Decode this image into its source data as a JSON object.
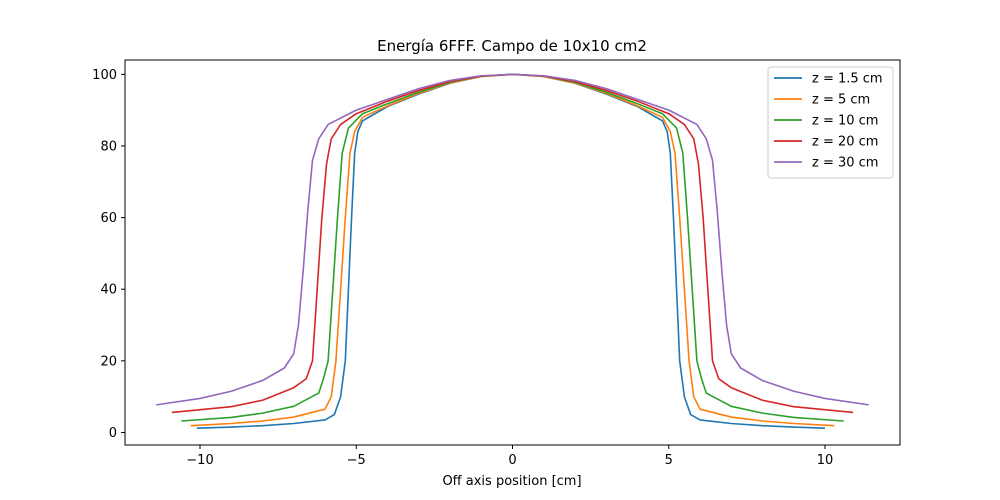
{
  "chart_data": {
    "type": "line",
    "title": "Energía 6FFF. Campo de 10x10 cm2",
    "xlabel": "Off axis position [cm]",
    "ylabel": "",
    "xlim": [
      -12.4,
      12.4
    ],
    "ylim": [
      -3.5,
      104
    ],
    "xticks": [
      -10,
      -5,
      0,
      5,
      10
    ],
    "xtick_labels": [
      "−10",
      "−5",
      "0",
      "5",
      "10"
    ],
    "yticks": [
      0,
      20,
      40,
      60,
      80,
      100
    ],
    "ytick_labels": [
      "0",
      "20",
      "40",
      "60",
      "80",
      "100"
    ],
    "grid": false,
    "legend_position": "top-right",
    "series": [
      {
        "name": "z = 1.5 cm",
        "color": "#1f77b4",
        "points": [
          [
            -10.1,
            1.2
          ],
          [
            -9,
            1.5
          ],
          [
            -8,
            1.9
          ],
          [
            -7,
            2.5
          ],
          [
            -6,
            3.5
          ],
          [
            -5.7,
            5
          ],
          [
            -5.5,
            10
          ],
          [
            -5.35,
            20
          ],
          [
            -5.25,
            40
          ],
          [
            -5.15,
            60
          ],
          [
            -5.05,
            78
          ],
          [
            -4.95,
            84
          ],
          [
            -4.8,
            87
          ],
          [
            -4,
            91
          ],
          [
            -3,
            94.5
          ],
          [
            -2,
            97.5
          ],
          [
            -1,
            99.4
          ],
          [
            0,
            100
          ],
          [
            1,
            99.4
          ],
          [
            2,
            97.5
          ],
          [
            3,
            94.5
          ],
          [
            4,
            91
          ],
          [
            4.8,
            87
          ],
          [
            4.95,
            84
          ],
          [
            5.05,
            78
          ],
          [
            5.15,
            60
          ],
          [
            5.25,
            40
          ],
          [
            5.35,
            20
          ],
          [
            5.5,
            10
          ],
          [
            5.7,
            5
          ],
          [
            6,
            3.5
          ],
          [
            7,
            2.5
          ],
          [
            8,
            1.9
          ],
          [
            9,
            1.5
          ],
          [
            10,
            1.2
          ]
        ]
      },
      {
        "name": "z = 5 cm",
        "color": "#ff7f0e",
        "points": [
          [
            -10.3,
            1.9
          ],
          [
            -9,
            2.5
          ],
          [
            -8,
            3.2
          ],
          [
            -7,
            4.3
          ],
          [
            -6,
            6.5
          ],
          [
            -5.8,
            10
          ],
          [
            -5.65,
            20
          ],
          [
            -5.5,
            40
          ],
          [
            -5.35,
            60
          ],
          [
            -5.2,
            78
          ],
          [
            -5.05,
            84
          ],
          [
            -4.8,
            88
          ],
          [
            -4,
            91.2
          ],
          [
            -3,
            94.7
          ],
          [
            -2,
            97.6
          ],
          [
            -1,
            99.4
          ],
          [
            0,
            100
          ],
          [
            1,
            99.4
          ],
          [
            2,
            97.6
          ],
          [
            3,
            94.7
          ],
          [
            4,
            91.2
          ],
          [
            4.8,
            88
          ],
          [
            5.05,
            84
          ],
          [
            5.2,
            78
          ],
          [
            5.35,
            60
          ],
          [
            5.5,
            40
          ],
          [
            5.65,
            20
          ],
          [
            5.8,
            10
          ],
          [
            6,
            6.5
          ],
          [
            7,
            4.3
          ],
          [
            8,
            3.2
          ],
          [
            9,
            2.5
          ],
          [
            10.3,
            1.9
          ]
        ]
      },
      {
        "name": "z = 10 cm",
        "color": "#2ca02c",
        "points": [
          [
            -10.6,
            3.2
          ],
          [
            -9,
            4.2
          ],
          [
            -8,
            5.4
          ],
          [
            -7,
            7.3
          ],
          [
            -6.2,
            11
          ],
          [
            -6.05,
            15
          ],
          [
            -5.9,
            20
          ],
          [
            -5.75,
            40
          ],
          [
            -5.6,
            60
          ],
          [
            -5.45,
            78
          ],
          [
            -5.25,
            85
          ],
          [
            -4.8,
            89
          ],
          [
            -4,
            91.8
          ],
          [
            -3,
            95
          ],
          [
            -2,
            97.8
          ],
          [
            -1,
            99.5
          ],
          [
            0,
            100
          ],
          [
            1,
            99.5
          ],
          [
            2,
            97.8
          ],
          [
            3,
            95
          ],
          [
            4,
            91.8
          ],
          [
            4.8,
            89
          ],
          [
            5.25,
            85
          ],
          [
            5.45,
            78
          ],
          [
            5.6,
            60
          ],
          [
            5.75,
            40
          ],
          [
            5.9,
            20
          ],
          [
            6.05,
            15
          ],
          [
            6.2,
            11
          ],
          [
            7,
            7.3
          ],
          [
            8,
            5.4
          ],
          [
            9,
            4.2
          ],
          [
            10.6,
            3.2
          ]
        ]
      },
      {
        "name": "z = 20 cm",
        "color": "#d62728",
        "points": [
          [
            -10.9,
            5.6
          ],
          [
            -9,
            7.2
          ],
          [
            -8,
            9
          ],
          [
            -7,
            12.5
          ],
          [
            -6.6,
            15
          ],
          [
            -6.4,
            20
          ],
          [
            -6.25,
            40
          ],
          [
            -6.1,
            60
          ],
          [
            -5.95,
            75
          ],
          [
            -5.8,
            82
          ],
          [
            -5.5,
            86
          ],
          [
            -5,
            89
          ],
          [
            -4,
            92.5
          ],
          [
            -3,
            95.5
          ],
          [
            -2,
            98
          ],
          [
            -1,
            99.5
          ],
          [
            0,
            100
          ],
          [
            1,
            99.5
          ],
          [
            2,
            98
          ],
          [
            3,
            95.5
          ],
          [
            4,
            92.5
          ],
          [
            5,
            89
          ],
          [
            5.5,
            86
          ],
          [
            5.8,
            82
          ],
          [
            5.95,
            75
          ],
          [
            6.1,
            60
          ],
          [
            6.25,
            40
          ],
          [
            6.4,
            20
          ],
          [
            6.6,
            15
          ],
          [
            7,
            12.5
          ],
          [
            8,
            9
          ],
          [
            9,
            7.2
          ],
          [
            10.9,
            5.6
          ]
        ]
      },
      {
        "name": "z = 30 cm",
        "color": "#9467bd",
        "points": [
          [
            -11.4,
            7.7
          ],
          [
            -10,
            9.5
          ],
          [
            -9,
            11.5
          ],
          [
            -8,
            14.5
          ],
          [
            -7.3,
            18
          ],
          [
            -7,
            22
          ],
          [
            -6.85,
            30
          ],
          [
            -6.7,
            45
          ],
          [
            -6.55,
            62
          ],
          [
            -6.4,
            76
          ],
          [
            -6.2,
            82
          ],
          [
            -5.9,
            86
          ],
          [
            -5,
            90
          ],
          [
            -4,
            93
          ],
          [
            -3,
            96
          ],
          [
            -2,
            98.3
          ],
          [
            -1,
            99.6
          ],
          [
            0,
            100
          ],
          [
            1,
            99.6
          ],
          [
            2,
            98.3
          ],
          [
            3,
            96
          ],
          [
            4,
            93
          ],
          [
            5,
            90
          ],
          [
            5.9,
            86
          ],
          [
            6.2,
            82
          ],
          [
            6.4,
            76
          ],
          [
            6.55,
            62
          ],
          [
            6.7,
            45
          ],
          [
            6.85,
            30
          ],
          [
            7,
            22
          ],
          [
            7.3,
            18
          ],
          [
            8,
            14.5
          ],
          [
            9,
            11.5
          ],
          [
            10,
            9.5
          ],
          [
            11.4,
            7.7
          ]
        ]
      }
    ]
  }
}
